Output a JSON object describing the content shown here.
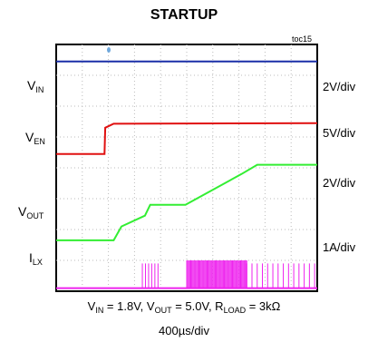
{
  "chart_data": {
    "type": "line",
    "title": "STARTUP",
    "figure_tag": "toc15",
    "conditions": [
      "V",
      "IN",
      " = 1.8V, V",
      "OUT",
      " = 5.0V, R",
      "LOAD",
      " = 3kΩ"
    ],
    "time_per_div": "400µs/div",
    "grid": true,
    "x_divisions": 10,
    "y_divisions": 8,
    "channels": [
      {
        "name": [
          "V",
          "IN"
        ],
        "scale": "2V/div",
        "color": "#1a2fa8",
        "ground_div": 6.5,
        "points": [
          [
            0,
            0.95
          ],
          [
            10,
            0.95
          ]
        ]
      },
      {
        "name": [
          "V",
          "EN"
        ],
        "scale": "5V/div",
        "color": "#e01010",
        "ground_div": 4.45,
        "points": [
          [
            0,
            0
          ],
          [
            1.85,
            0
          ],
          [
            1.88,
            0.85
          ],
          [
            2.2,
            0.98
          ],
          [
            10,
            1.0
          ]
        ]
      },
      {
        "name": [
          "V",
          "OUT"
        ],
        "scale": "2V/div",
        "color": "#33ee33",
        "ground_div": 1.65,
        "points": [
          [
            0,
            0
          ],
          [
            2.2,
            0
          ],
          [
            2.5,
            0.45
          ],
          [
            3.4,
            0.8
          ],
          [
            3.6,
            1.15
          ],
          [
            4.95,
            1.15
          ],
          [
            7.1,
            2.15
          ],
          [
            7.7,
            2.45
          ],
          [
            10,
            2.45
          ]
        ]
      },
      {
        "name": [
          "I",
          "LX"
        ],
        "scale": "1A/div",
        "color": "#ee22ee",
        "ground_div": 0.1,
        "points": [
          [
            0,
            0
          ],
          [
            10,
            0
          ]
        ],
        "bursts": [
          [
            3.3,
            3.9,
            6,
            0.8
          ],
          [
            5.0,
            7.3,
            60,
            0.9
          ],
          [
            7.3,
            9.9,
            14,
            0.8
          ]
        ]
      }
    ]
  }
}
